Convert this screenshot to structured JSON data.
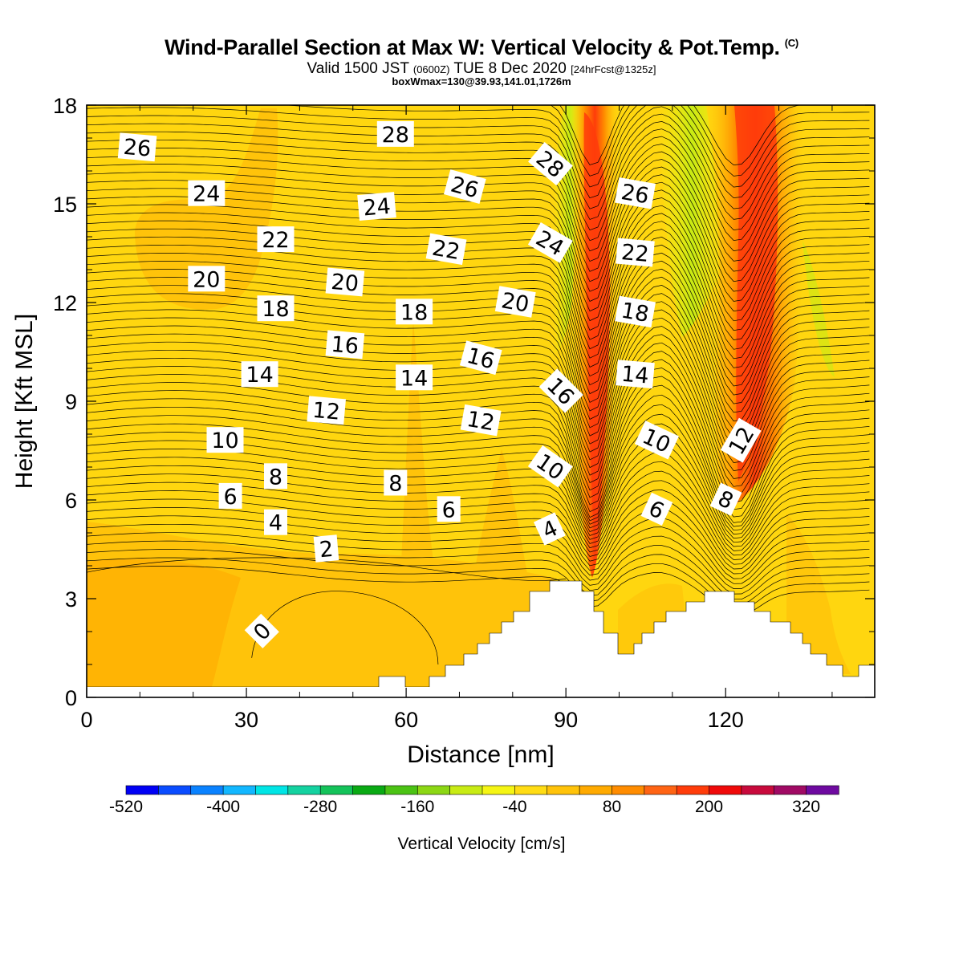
{
  "title": "Wind-Parallel Section at Max W: Vertical Velocity & Pot.Temp.",
  "copyright_mark": "(C)",
  "subtitle": {
    "valid": "Valid 1500 JST",
    "utc": "(0600Z)",
    "date": "TUE 8 Dec 2020",
    "forecast": "[24hrFcst@1325z]"
  },
  "box_info": "boxWmax=130@39.93,141.01,1726m",
  "chart_data": {
    "type": "contour",
    "xlabel": "Distance [nm]",
    "ylabel": "Height [Kft MSL]",
    "xlim": [
      0,
      148
    ],
    "ylim": [
      0,
      18
    ],
    "xticks": [
      "0",
      "30",
      "60",
      "90",
      "120"
    ],
    "yticks": [
      "0",
      "3",
      "6",
      "9",
      "12",
      "15",
      "18"
    ],
    "contour_labels": [
      {
        "text": "26",
        "x": 9.5,
        "y": 16.7,
        "rot": 5
      },
      {
        "text": "28",
        "x": 58,
        "y": 17.1,
        "rot": 0
      },
      {
        "text": "28",
        "x": 87,
        "y": 16.2,
        "rot": 40
      },
      {
        "text": "26",
        "x": 71,
        "y": 15.5,
        "rot": 15
      },
      {
        "text": "24",
        "x": 22.5,
        "y": 15.3,
        "rot": 0
      },
      {
        "text": "24",
        "x": 54.5,
        "y": 14.9,
        "rot": -5
      },
      {
        "text": "24",
        "x": 87,
        "y": 13.8,
        "rot": 30
      },
      {
        "text": "26",
        "x": 103,
        "y": 15.3,
        "rot": 10
      },
      {
        "text": "22",
        "x": 35.5,
        "y": 13.9,
        "rot": 0
      },
      {
        "text": "22",
        "x": 67.5,
        "y": 13.6,
        "rot": 10
      },
      {
        "text": "22",
        "x": 103,
        "y": 13.5,
        "rot": 5
      },
      {
        "text": "20",
        "x": 22.5,
        "y": 12.7,
        "rot": 0
      },
      {
        "text": "20",
        "x": 48.5,
        "y": 12.6,
        "rot": 5
      },
      {
        "text": "20",
        "x": 80.5,
        "y": 12.0,
        "rot": 10
      },
      {
        "text": "18",
        "x": 35.5,
        "y": 11.8,
        "rot": 0
      },
      {
        "text": "18",
        "x": 61.5,
        "y": 11.7,
        "rot": 0
      },
      {
        "text": "18",
        "x": 103,
        "y": 11.7,
        "rot": 10
      },
      {
        "text": "16",
        "x": 48.5,
        "y": 10.7,
        "rot": 5
      },
      {
        "text": "16",
        "x": 74,
        "y": 10.3,
        "rot": 15
      },
      {
        "text": "16",
        "x": 89,
        "y": 9.3,
        "rot": 45
      },
      {
        "text": "14",
        "x": 32.5,
        "y": 9.8,
        "rot": 0
      },
      {
        "text": "14",
        "x": 61.5,
        "y": 9.7,
        "rot": 0
      },
      {
        "text": "14",
        "x": 103,
        "y": 9.8,
        "rot": 5
      },
      {
        "text": "12",
        "x": 45,
        "y": 8.7,
        "rot": 5
      },
      {
        "text": "12",
        "x": 74,
        "y": 8.4,
        "rot": 10
      },
      {
        "text": "12",
        "x": 123,
        "y": 7.8,
        "rot": -60
      },
      {
        "text": "10",
        "x": 26,
        "y": 7.8,
        "rot": 0
      },
      {
        "text": "10",
        "x": 87,
        "y": 7.0,
        "rot": 35
      },
      {
        "text": "10",
        "x": 107,
        "y": 7.8,
        "rot": 25
      },
      {
        "text": "8",
        "x": 35.5,
        "y": 6.7,
        "rot": 0
      },
      {
        "text": "8",
        "x": 58,
        "y": 6.5,
        "rot": 0
      },
      {
        "text": "8",
        "x": 120,
        "y": 6.0,
        "rot": 25
      },
      {
        "text": "6",
        "x": 27,
        "y": 6.1,
        "rot": 0
      },
      {
        "text": "6",
        "x": 68,
        "y": 5.7,
        "rot": 0
      },
      {
        "text": "6",
        "x": 107,
        "y": 5.7,
        "rot": 25
      },
      {
        "text": "4",
        "x": 35.5,
        "y": 5.3,
        "rot": 0
      },
      {
        "text": "4",
        "x": 87,
        "y": 5.1,
        "rot": -25
      },
      {
        "text": "2",
        "x": 45,
        "y": 4.5,
        "rot": -5
      },
      {
        "text": "0",
        "x": 33,
        "y": 2.0,
        "rot": -45
      }
    ]
  },
  "colorbar": {
    "title": "Vertical Velocity [cm/s]",
    "tick_labels": [
      "-520",
      "-400",
      "-280",
      "-160",
      "-40",
      "80",
      "200",
      "320"
    ],
    "colors": [
      "#0000f5",
      "#0a4cff",
      "#0a82ff",
      "#12b7ff",
      "#00e5e5",
      "#14d2a0",
      "#14c35a",
      "#0aaa14",
      "#4bc314",
      "#8cd714",
      "#c8eb14",
      "#f5f514",
      "#ffdc14",
      "#ffc30a",
      "#ffaa00",
      "#ff8c00",
      "#ff6414",
      "#ff3c0a",
      "#f00a0a",
      "#c80a3c",
      "#a00a64",
      "#6e0aa0"
    ]
  }
}
